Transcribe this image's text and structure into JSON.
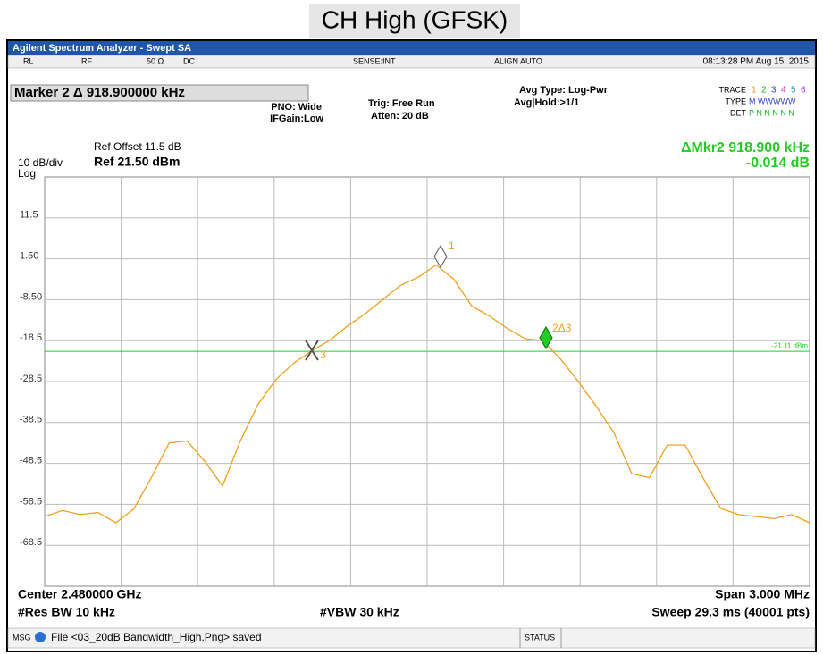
{
  "header": {
    "title": "CH High (GFSK)"
  },
  "window": {
    "title": "Agilent Spectrum Analyzer - Swept SA"
  },
  "status_bar": {
    "rl": "RL",
    "rf": "RF",
    "impedance": "50 Ω",
    "coupling": "DC",
    "sense": "SENSE:INT",
    "align": "ALIGN AUTO",
    "clock": "08:13:28 PM Aug 15, 2015"
  },
  "settings": {
    "marker": "Marker 2 Δ 918.900000 kHz",
    "pno": "PNO: Wide",
    "ifgain": "IFGain:Low",
    "trig": "Trig: Free Run",
    "atten": "Atten: 20 dB",
    "avg_type": "Avg Type: Log-Pwr",
    "avg_hold": "Avg|Hold:>1/1",
    "trace_label": "TRACE",
    "trace_nums": [
      "1",
      "2",
      "3",
      "4",
      "5",
      "6"
    ],
    "type_label": "TYPE",
    "type_value": "M WWWWW",
    "det_label": "DET",
    "det_value": "P N N N N N"
  },
  "scale": {
    "ref_offset": "Ref Offset 11.5 dB",
    "div": "10 dB/div",
    "ref": "Ref 21.50 dBm",
    "log": "Log"
  },
  "readout": {
    "freq": "ΔMkr2 918.900 kHz",
    "level": "-0.014 dB"
  },
  "footer": {
    "center": "Center 2.480000 GHz",
    "span": "Span 3.000 MHz",
    "rbw": "#Res BW 10 kHz",
    "vbw": "#VBW 30 kHz",
    "sweep": "Sweep  29.3 ms (40001 pts)"
  },
  "message_bar": {
    "msg": "MSG",
    "text": "File <03_20dB Bandwidth_High.Png> saved",
    "status": "STATUS"
  },
  "markers": {
    "m1": "1",
    "m2": "2Δ3",
    "m3": "3"
  },
  "chart_data": {
    "type": "line",
    "ylim": [
      -78.5,
      21.5
    ],
    "yticks": [
      {
        "value": 11.5,
        "label": "11.5"
      },
      {
        "value": 1.5,
        "label": "1.50"
      },
      {
        "value": -8.5,
        "label": "-8.50"
      },
      -18.5,
      -28.5,
      -38.5,
      -48.5,
      -58.5,
      -68.5
    ],
    "grid": true,
    "series": [
      {
        "color": "#f0a020",
        "values": [
          -61.5,
          -60,
          -61,
          -60.5,
          -63,
          -59.7,
          -52,
          -43.5,
          -43,
          -48,
          -54,
          -43,
          -34,
          -28,
          -24,
          -21,
          -18.5,
          -15,
          -12,
          -8.5,
          -5,
          -3,
          0,
          -3.5,
          -10,
          -12.5,
          -15.5,
          -18,
          -18.5,
          -23,
          -28.5,
          -34.5,
          -41,
          -51,
          -52,
          -44,
          -44,
          -52,
          -59.5,
          -61,
          -61.5,
          -62,
          -61,
          -63
        ]
      }
    ],
    "display_line": {
      "value": -21.11,
      "label": "-21.11 dBm",
      "color": "#22cc22"
    }
  }
}
